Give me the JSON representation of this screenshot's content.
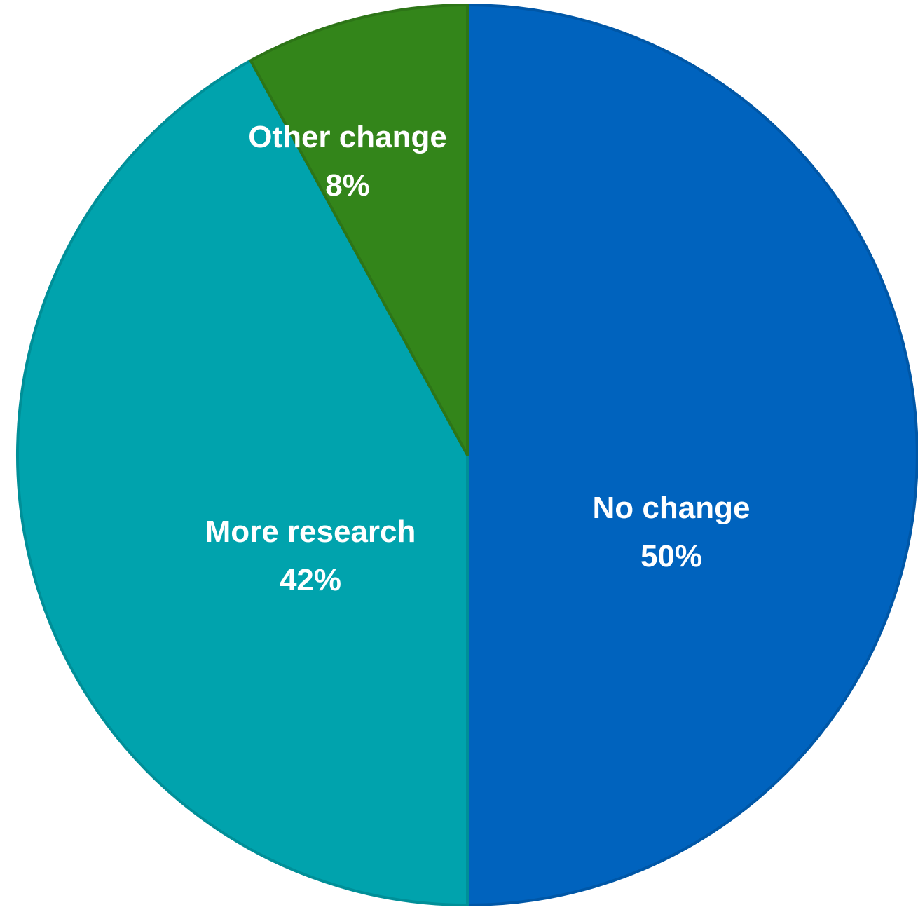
{
  "chart_data": {
    "type": "pie",
    "title": "",
    "start_angle_deg": 0,
    "direction": "clockwise",
    "slices": [
      {
        "label": "No change",
        "value": 50,
        "value_label": "50%",
        "color": "#0063BE"
      },
      {
        "label": "More research",
        "value": 42,
        "value_label": "42%",
        "color": "#00A3AD"
      },
      {
        "label": "Other change",
        "value": 8,
        "value_label": "8%",
        "color": "#33851A"
      }
    ],
    "legend": "none",
    "label_position": "inside"
  }
}
